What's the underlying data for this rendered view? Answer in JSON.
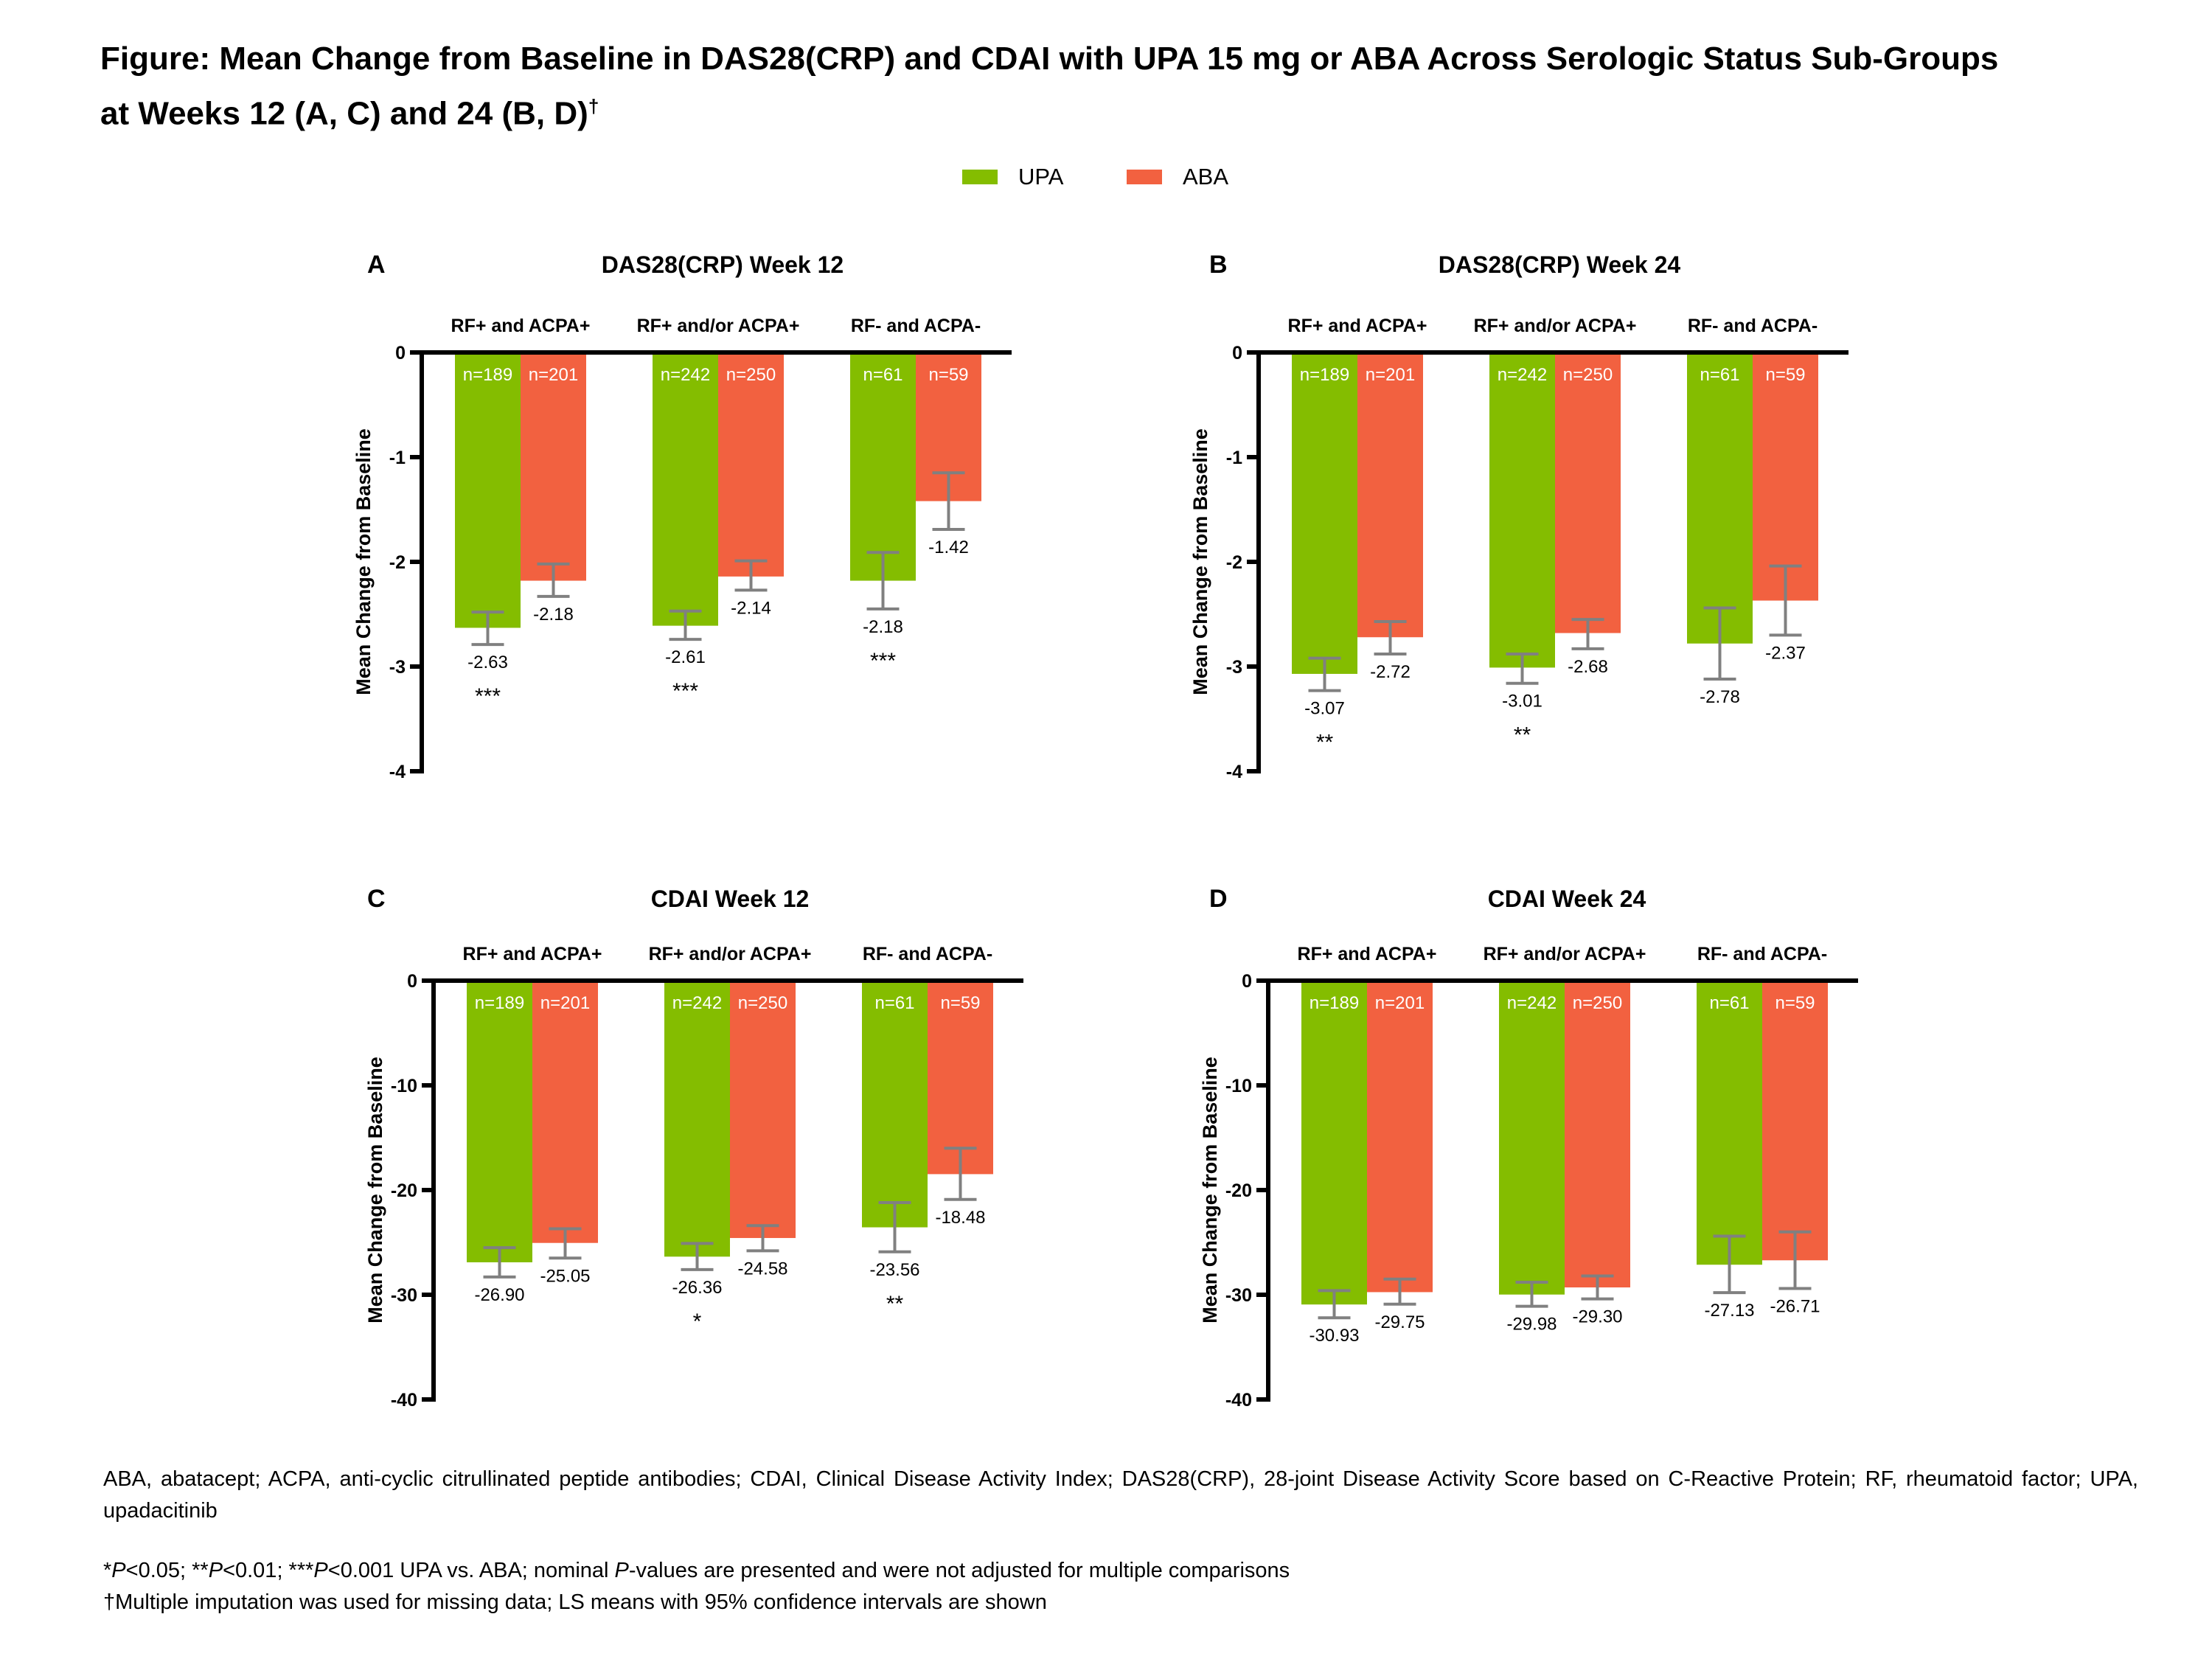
{
  "figure": {
    "title_line1": "Figure: Mean Change from Baseline in DAS28(CRP) and CDAI with UPA 15 mg or ABA Across Serologic Status Sub-Groups",
    "title_line2": "at Weeks 12 (A, C) and 24 (B, D)",
    "title_dagger": "†"
  },
  "legend": [
    {
      "label": "UPA",
      "color": "#84BD00"
    },
    {
      "label": "ABA",
      "color": "#F26140"
    }
  ],
  "colors": {
    "UPA": "#84BD00",
    "ABA": "#F26140",
    "error_bar": "#808080",
    "axis": "#000000",
    "n_label": "#ffffff"
  },
  "footnotes": {
    "abbreviations": "ABA, abatacept; ACPA, anti-cyclic citrullinated peptide antibodies; CDAI, Clinical Disease Activity Index; DAS28(CRP), 28-joint Disease Activity Score based on C-Reactive Protein; RF, rheumatoid factor; UPA, upadacitinib",
    "pvalues_parts": [
      "*",
      "P",
      "<0.05; **",
      "P",
      "<0.01; ***",
      "P",
      "<0.001 UPA vs. ABA; nominal ",
      "P",
      "-values are presented and were not adjusted for multiple comparisons"
    ],
    "imputation": "†Multiple imputation was used for missing data; LS means with 95% confidence intervals are shown"
  },
  "chart_data": [
    {
      "panel": "A",
      "type": "bar",
      "title": "DAS28(CRP) Week 12",
      "ylabel": "Mean Change from Baseline",
      "ylim": [
        -4,
        0
      ],
      "yticks": [
        0,
        -1,
        -2,
        -3,
        -4
      ],
      "categories": [
        "RF+ and ACPA+",
        "RF+ and/or ACPA+",
        "RF- and ACPA-"
      ],
      "series": [
        {
          "name": "UPA",
          "values": [
            -2.63,
            -2.61,
            -2.18
          ],
          "n": [
            "n=189",
            "n=242",
            "n=61"
          ],
          "ci": [
            [
              -2.79,
              -2.48
            ],
            [
              -2.74,
              -2.47
            ],
            [
              -2.45,
              -1.91
            ]
          ],
          "labels": [
            "-2.63",
            "-2.61",
            "-2.18"
          ],
          "significance": [
            "***",
            "***",
            "***"
          ]
        },
        {
          "name": "ABA",
          "values": [
            -2.18,
            -2.14,
            -1.42
          ],
          "n": [
            "n=201",
            "n=250",
            "n=59"
          ],
          "ci": [
            [
              -2.33,
              -2.02
            ],
            [
              -2.27,
              -1.99
            ],
            [
              -1.69,
              -1.15
            ]
          ],
          "labels": [
            "-2.18",
            "-2.14",
            "-1.42"
          ],
          "significance": [
            "",
            "",
            ""
          ]
        }
      ]
    },
    {
      "panel": "B",
      "type": "bar",
      "title": "DAS28(CRP) Week 24",
      "ylabel": "Mean Change from Baseline",
      "ylim": [
        -4,
        0
      ],
      "yticks": [
        0,
        -1,
        -2,
        -3,
        -4
      ],
      "categories": [
        "RF+ and ACPA+",
        "RF+ and/or ACPA+",
        "RF- and ACPA-"
      ],
      "series": [
        {
          "name": "UPA",
          "values": [
            -3.07,
            -3.01,
            -2.78
          ],
          "n": [
            "n=189",
            "n=242",
            "n=61"
          ],
          "ci": [
            [
              -3.23,
              -2.92
            ],
            [
              -3.16,
              -2.88
            ],
            [
              -3.12,
              -2.44
            ]
          ],
          "labels": [
            "-3.07",
            "-3.01",
            "-2.78"
          ],
          "significance": [
            "**",
            "**",
            ""
          ]
        },
        {
          "name": "ABA",
          "values": [
            -2.72,
            -2.68,
            -2.37
          ],
          "n": [
            "n=201",
            "n=250",
            "n=59"
          ],
          "ci": [
            [
              -2.88,
              -2.57
            ],
            [
              -2.83,
              -2.55
            ],
            [
              -2.7,
              -2.04
            ]
          ],
          "labels": [
            "-2.72",
            "-2.68",
            "-2.37"
          ],
          "significance": [
            "",
            "",
            ""
          ]
        }
      ]
    },
    {
      "panel": "C",
      "type": "bar",
      "title": "CDAI Week 12",
      "ylabel": "Mean Change from Baseline",
      "ylim": [
        -40,
        0
      ],
      "yticks": [
        0,
        -10,
        -20,
        -30,
        -40
      ],
      "categories": [
        "RF+ and ACPA+",
        "RF+ and/or ACPA+",
        "RF- and ACPA-"
      ],
      "series": [
        {
          "name": "UPA",
          "values": [
            -26.9,
            -26.36,
            -23.56
          ],
          "n": [
            "n=189",
            "n=242",
            "n=61"
          ],
          "ci": [
            [
              -28.3,
              -25.5
            ],
            [
              -27.6,
              -25.1
            ],
            [
              -25.9,
              -21.2
            ]
          ],
          "labels": [
            "-26.90",
            "-26.36",
            "-23.56"
          ],
          "significance": [
            "",
            "*",
            "**"
          ]
        },
        {
          "name": "ABA",
          "values": [
            -25.05,
            -24.58,
            -18.48
          ],
          "n": [
            "n=201",
            "n=250",
            "n=59"
          ],
          "ci": [
            [
              -26.5,
              -23.7
            ],
            [
              -25.8,
              -23.4
            ],
            [
              -20.9,
              -16.0
            ]
          ],
          "labels": [
            "-25.05",
            "-24.58",
            "-18.48"
          ],
          "significance": [
            "",
            "",
            ""
          ]
        }
      ]
    },
    {
      "panel": "D",
      "type": "bar",
      "title": "CDAI Week 24",
      "ylabel": "Mean Change from Baseline",
      "ylim": [
        -40,
        0
      ],
      "yticks": [
        0,
        -10,
        -20,
        -30,
        -40
      ],
      "categories": [
        "RF+ and ACPA+",
        "RF+ and/or ACPA+",
        "RF- and ACPA-"
      ],
      "series": [
        {
          "name": "UPA",
          "values": [
            -30.93,
            -29.98,
            -27.13
          ],
          "n": [
            "n=189",
            "n=242",
            "n=61"
          ],
          "ci": [
            [
              -32.2,
              -29.6
            ],
            [
              -31.1,
              -28.8
            ],
            [
              -29.8,
              -24.4
            ]
          ],
          "labels": [
            "-30.93",
            "-29.98",
            "-27.13"
          ],
          "significance": [
            "",
            "",
            ""
          ]
        },
        {
          "name": "ABA",
          "values": [
            -29.75,
            -29.3,
            -26.71
          ],
          "n": [
            "n=201",
            "n=250",
            "n=59"
          ],
          "ci": [
            [
              -30.9,
              -28.5
            ],
            [
              -30.4,
              -28.2
            ],
            [
              -29.4,
              -24.0
            ]
          ],
          "labels": [
            "-29.75",
            "-29.30",
            "-26.71"
          ],
          "significance": [
            "",
            "",
            ""
          ]
        }
      ]
    }
  ]
}
